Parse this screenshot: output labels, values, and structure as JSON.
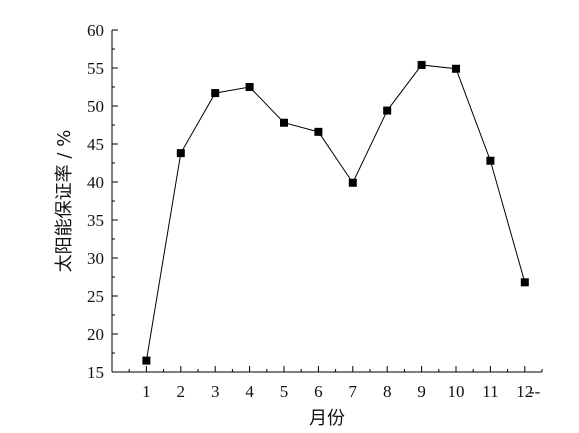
{
  "chart_data": {
    "type": "line",
    "title": "",
    "xlabel": "月份",
    "ylabel": "太阳能保证率 / %",
    "x": [
      1,
      2,
      3,
      4,
      5,
      6,
      7,
      8,
      9,
      10,
      11,
      12
    ],
    "xticks": [
      "1",
      "2",
      "3",
      "4",
      "5",
      "6",
      "7",
      "8",
      "9",
      "10",
      "11",
      "12"
    ],
    "x_axis_end_text": "--",
    "yticks": [
      "15",
      "20",
      "25",
      "30",
      "35",
      "40",
      "45",
      "50",
      "55",
      "60"
    ],
    "ylim": [
      15,
      60
    ],
    "xlim": [
      0,
      12.5
    ],
    "series": [
      {
        "values": [
          16.5,
          43.8,
          51.7,
          52.5,
          47.8,
          46.6,
          39.9,
          49.4,
          55.4,
          54.9,
          42.8,
          26.8
        ],
        "marker": "square",
        "color": "#000000"
      }
    ],
    "grid": false,
    "legend": "none"
  }
}
